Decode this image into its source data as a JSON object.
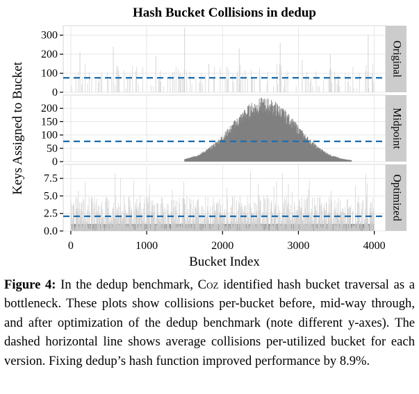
{
  "chart_data": {
    "type": "bar",
    "title": "Hash Bucket Collisions in dedup",
    "xlabel": "Bucket Index",
    "ylabel": "Keys Assigned to Bucket",
    "xlim": [
      -100,
      4150
    ],
    "x_ticks": [
      0,
      1000,
      2000,
      3000,
      4000
    ],
    "x_tick_labels": [
      "0",
      "1000",
      "2000",
      "3000",
      "4000"
    ],
    "grid": true,
    "n_buckets": 4000,
    "series": [
      {
        "name": "Original",
        "ylim": [
          0,
          350
        ],
        "y_ticks": [
          0,
          100,
          200,
          300
        ],
        "y_tick_labels": [
          "0",
          "100",
          "200",
          "300"
        ],
        "average_line": 76,
        "description_points": [
          {
            "x": 120,
            "y": 210
          },
          {
            "x": 560,
            "y": 240
          },
          {
            "x": 1120,
            "y": 190
          },
          {
            "x": 1500,
            "y": 340
          },
          {
            "x": 1820,
            "y": 150
          },
          {
            "x": 2220,
            "y": 230
          },
          {
            "x": 2760,
            "y": 260
          },
          {
            "x": 3050,
            "y": 170
          },
          {
            "x": 3420,
            "y": 200
          },
          {
            "x": 3920,
            "y": 300
          }
        ]
      },
      {
        "name": "Midpoint",
        "ylim": [
          0,
          250
        ],
        "y_ticks": [
          0,
          50,
          100,
          150,
          200
        ],
        "y_tick_labels": [
          "0",
          "50",
          "100",
          "150",
          "200"
        ],
        "average_line": 76,
        "distribution": {
          "shape": "gaussian",
          "center": 2550,
          "spread": 420,
          "peak": 210,
          "range": [
            1500,
            3700
          ]
        }
      },
      {
        "name": "Optimized",
        "ylim": [
          0,
          9.5
        ],
        "y_ticks": [
          0,
          2.5,
          5,
          7.5
        ],
        "y_tick_labels": [
          "0.0",
          "2.5",
          "5.0",
          "7.5"
        ],
        "average_line": 2.1,
        "typical_range": [
          0,
          5
        ],
        "max_value": 9
      }
    ]
  },
  "caption": {
    "label": "Figure 4:",
    "text_before_name": " In the dedup benchmark, ",
    "tool_name": "Coz",
    "text_after_name": " identified hash bucket traversal as a bottleneck. These plots show collisions per-bucket before, mid-way through, and after optimization of the dedup benchmark (note different y-axes). The dashed horizontal line shows average collisions per-utilized bucket for each version. Fixing dedup’s hash function improved performance by 8.9%."
  },
  "colors": {
    "background": "#ffffff",
    "panel_background": "#ffffff",
    "grid": "#e6e6e6",
    "bars": "#808080",
    "bars_light": "#cfcfcf",
    "average_line": "#1f6fb0",
    "strip": "#cccccc",
    "text": "#000000"
  }
}
